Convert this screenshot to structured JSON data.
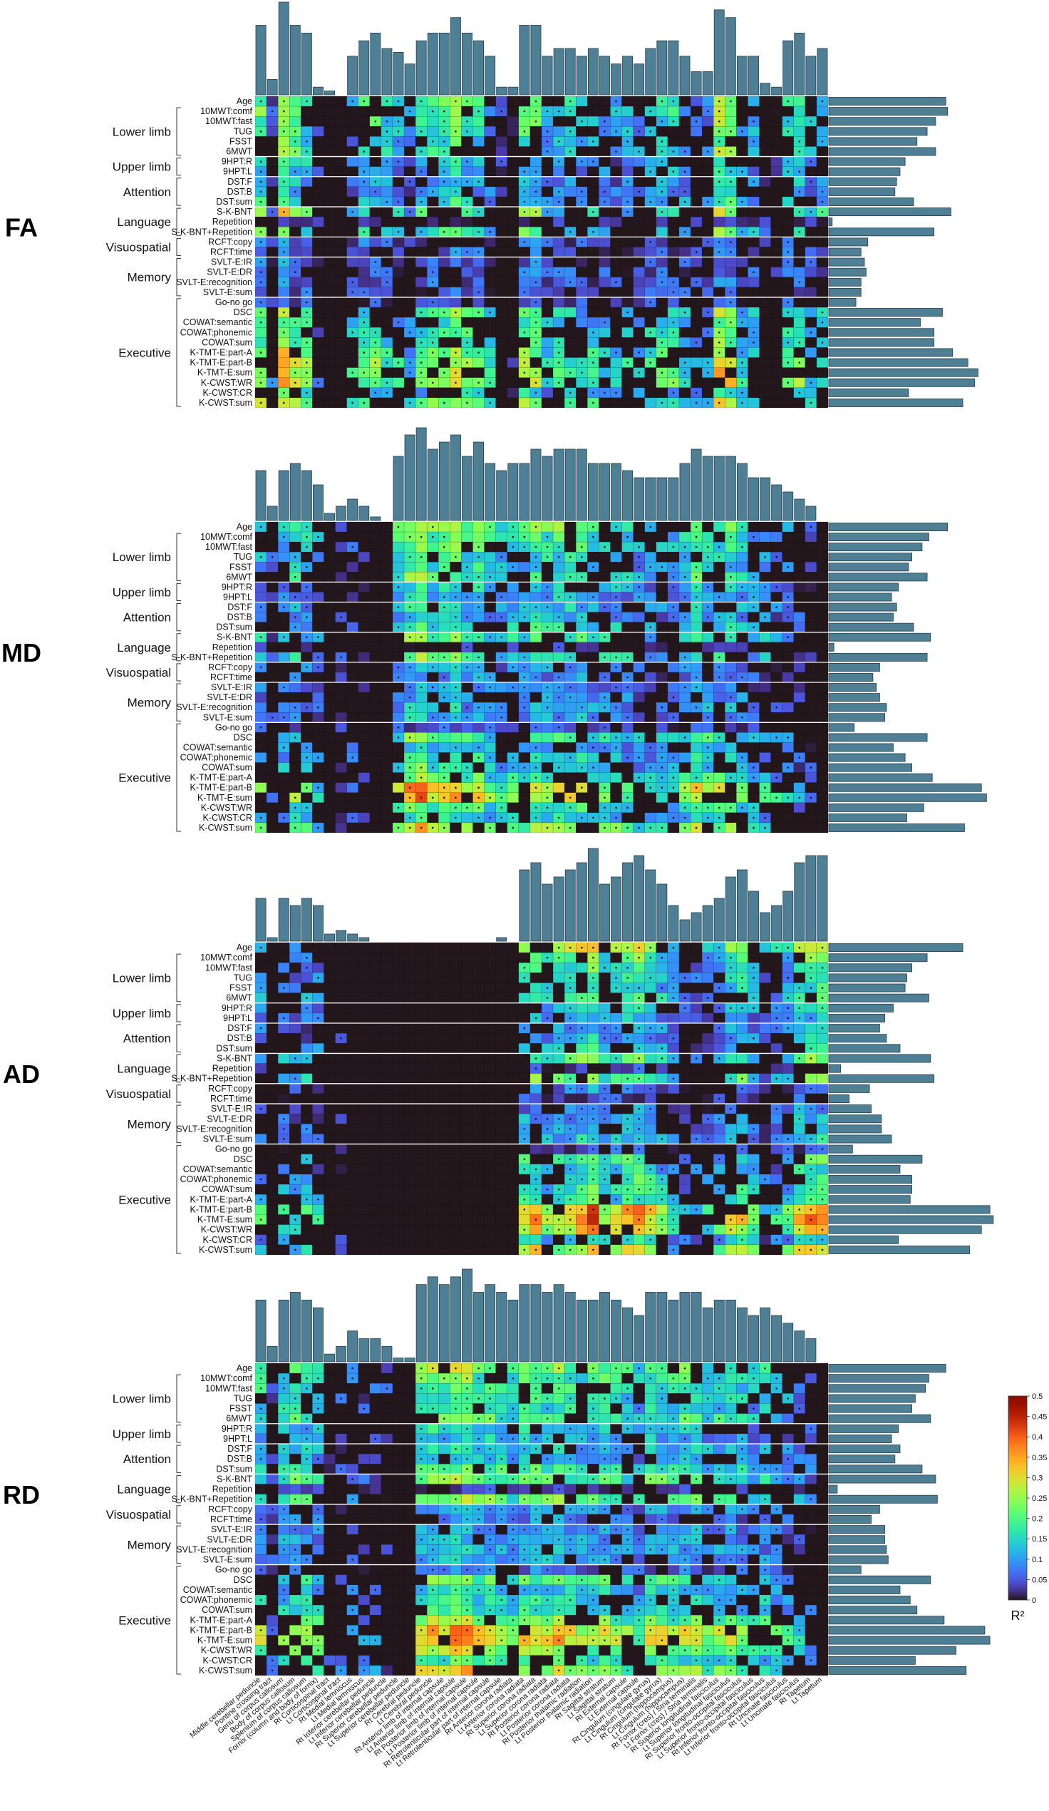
{
  "chart_data": {
    "type": "heatmap",
    "panels": [
      "FA",
      "MD",
      "AD",
      "RD"
    ],
    "rows": [
      "Age",
      "10MWT:comf",
      "10MWT:fast",
      "TUG",
      "FSST",
      "6MWT",
      "9HPT:R",
      "9HPT:L",
      "DST:F",
      "DST:B",
      "DST:sum",
      "S-K-BNT",
      "Repetition",
      "S-K-BNT+Repetition",
      "RCFT:copy",
      "RCFT:time",
      "SVLT-E:IR",
      "SVLT-E:DR",
      "SVLT-E:recognition",
      "SVLT-E:sum",
      "Go-no go",
      "DSC",
      "COWAT:semantic",
      "COWAT:phonemic",
      "COWAT:sum",
      "K-TMT-E:part-A",
      "K-TMT-E:part-B",
      "K-TMT-E:sum",
      "K-CWST:WR",
      "K-CWST:CR",
      "K-CWST:sum"
    ],
    "groups": [
      {
        "name": "Lower limb",
        "start": 1,
        "end": 5
      },
      {
        "name": "Upper limb",
        "start": 6,
        "end": 7
      },
      {
        "name": "Attention",
        "start": 8,
        "end": 10
      },
      {
        "name": "Language",
        "start": 11,
        "end": 13
      },
      {
        "name": "Visuospatial",
        "start": 14,
        "end": 15
      },
      {
        "name": "Memory",
        "start": 16,
        "end": 19
      },
      {
        "name": "Executive",
        "start": 20,
        "end": 30
      }
    ],
    "columns": [
      "Middle cerebellar peduncle",
      "Pontine crossing tract",
      "Genu of corpus callosum",
      "Body of corpus callosum",
      "Splenium of corpus callosum",
      "Fornix (column and body of fornix)",
      "Rt Corticospinal tract",
      "Lt Corticospinal tract",
      "Rt Medial lemniscus",
      "Lt Medial lemniscus",
      "Rt Inferior cerebellar peduncle",
      "Lt Inferior cerebellar peduncle",
      "Rt Superior cerebellar peduncle",
      "Lt Superior cerebellar peduncle",
      "Rt Cerebral peduncle",
      "Lt Cerebral peduncle",
      "Rt Anterior limb of internal capsule",
      "Lt Anterior limb of internal capsule",
      "Rt Posterior limb of internal capsule",
      "Lt Posterior limb of internal capsule",
      "Rt Retrolenticular part of internal capsule",
      "Lt Retrolenticular part of internal capsule",
      "Rt Anterior corona radiata",
      "Lt Anterior corona radiata",
      "Rt Superior corona radiata",
      "Lt Superior corona radiata",
      "Rt Posterior corona radiata",
      "Lt Posterior corona radiata",
      "Rt Posterior thalamic radiation",
      "Lt Posterior thalamic radiation",
      "Rt Sagittal stratum",
      "Lt Sagittal stratum",
      "Rt External capsule",
      "Lt External capsule",
      "Rt Cingulum (cingulate gyrus)",
      "Lt Cingulum (cingulate gyrus)",
      "Rt Cingulum (hippocampus)",
      "Lt Cingulum (hippocampus)",
      "Rt Fornix (cres) / Stria terminalis",
      "Lt Fornix (cres) / Stria terminalis",
      "Rt Superior longitudinal fasciculus",
      "Lt Superior longitudinal fasciculus",
      "Rt Superior fronto-occipital fasciculus",
      "Lt Superior fronto-occipital fasciculus",
      "Rt Inferior fronto-occipital fasciculus",
      "Lt Inferior fronto-occipital fasciculus",
      "Rt Uncinate fasciculus",
      "Lt Uncinate fasciculus",
      "Rt Tapetum",
      "Lt Tapetum"
    ],
    "column_profiles": {
      "FA": [
        0.09,
        0.02,
        0.12,
        0.09,
        0.08,
        0.01,
        0.005,
        0.0,
        0.05,
        0.07,
        0.08,
        0.06,
        0.055,
        0.04,
        0.07,
        0.08,
        0.08,
        0.1,
        0.08,
        0.07,
        0.05,
        0.01,
        0.01,
        0.09,
        0.09,
        0.05,
        0.06,
        0.06,
        0.05,
        0.06,
        0.05,
        0.04,
        0.05,
        0.04,
        0.06,
        0.07,
        0.07,
        0.05,
        0.03,
        0.03,
        0.11,
        0.1,
        0.05,
        0.05,
        0.015,
        0.01,
        0.07,
        0.08,
        0.05,
        0.06
      ],
      "MD": [
        0.07,
        0.02,
        0.07,
        0.08,
        0.07,
        0.05,
        0.01,
        0.02,
        0.03,
        0.02,
        0.005,
        0.0,
        0.09,
        0.12,
        0.13,
        0.1,
        0.11,
        0.12,
        0.09,
        0.11,
        0.08,
        0.07,
        0.08,
        0.08,
        0.1,
        0.09,
        0.1,
        0.1,
        0.1,
        0.08,
        0.08,
        0.08,
        0.07,
        0.06,
        0.06,
        0.06,
        0.06,
        0.08,
        0.1,
        0.09,
        0.09,
        0.09,
        0.08,
        0.06,
        0.06,
        0.05,
        0.04,
        0.03,
        0.02,
        0.0
      ],
      "AD": [
        0.06,
        0.005,
        0.06,
        0.05,
        0.06,
        0.05,
        0.01,
        0.015,
        0.01,
        0.005,
        0.0,
        0.0,
        0.0,
        0.0,
        0.0,
        0.0,
        0.0,
        0.0,
        0.0,
        0.0,
        0.0,
        0.005,
        0.0,
        0.1,
        0.11,
        0.08,
        0.09,
        0.1,
        0.11,
        0.13,
        0.08,
        0.09,
        0.11,
        0.12,
        0.1,
        0.08,
        0.05,
        0.03,
        0.04,
        0.05,
        0.06,
        0.09,
        0.1,
        0.07,
        0.04,
        0.05,
        0.07,
        0.11,
        0.12,
        0.12
      ],
      "RD": [
        0.08,
        0.02,
        0.08,
        0.09,
        0.08,
        0.07,
        0.01,
        0.02,
        0.04,
        0.03,
        0.03,
        0.02,
        0.005,
        0.005,
        0.1,
        0.11,
        0.1,
        0.11,
        0.12,
        0.09,
        0.1,
        0.09,
        0.08,
        0.1,
        0.1,
        0.09,
        0.1,
        0.09,
        0.08,
        0.08,
        0.09,
        0.08,
        0.07,
        0.06,
        0.09,
        0.09,
        0.08,
        0.09,
        0.09,
        0.07,
        0.08,
        0.08,
        0.07,
        0.06,
        0.07,
        0.06,
        0.05,
        0.04,
        0.03,
        0.0
      ]
    },
    "row_profiles": {
      "FA": [
        0.69,
        0.7,
        0.63,
        0.58,
        0.52,
        0.63,
        0.45,
        0.42,
        0.4,
        0.39,
        0.5,
        0.72,
        0.02,
        0.62,
        0.23,
        0.19,
        0.21,
        0.22,
        0.19,
        0.19,
        0.16,
        0.67,
        0.54,
        0.62,
        0.62,
        0.73,
        0.82,
        0.88,
        0.86,
        0.47,
        0.79
      ],
      "MD": [
        0.7,
        0.59,
        0.55,
        0.49,
        0.47,
        0.58,
        0.41,
        0.37,
        0.4,
        0.38,
        0.5,
        0.6,
        0.03,
        0.58,
        0.3,
        0.26,
        0.28,
        0.3,
        0.34,
        0.33,
        0.15,
        0.58,
        0.38,
        0.45,
        0.49,
        0.61,
        0.9,
        0.93,
        0.56,
        0.46,
        0.8
      ],
      "AD": [
        0.79,
        0.58,
        0.49,
        0.46,
        0.45,
        0.59,
        0.38,
        0.33,
        0.3,
        0.34,
        0.42,
        0.6,
        0.07,
        0.62,
        0.24,
        0.12,
        0.25,
        0.31,
        0.31,
        0.37,
        0.14,
        0.55,
        0.42,
        0.49,
        0.49,
        0.48,
        0.95,
        0.97,
        0.9,
        0.41,
        0.83
      ],
      "RD": [
        0.69,
        0.59,
        0.57,
        0.51,
        0.49,
        0.6,
        0.41,
        0.37,
        0.42,
        0.39,
        0.55,
        0.63,
        0.05,
        0.64,
        0.3,
        0.25,
        0.33,
        0.33,
        0.34,
        0.35,
        0.19,
        0.6,
        0.42,
        0.48,
        0.52,
        0.68,
        0.92,
        0.95,
        0.75,
        0.51,
        0.81
      ]
    },
    "colorbar": {
      "label": "R²",
      "colormap": "turbo",
      "min": 0,
      "max": 0.5,
      "ticks": [
        "0",
        "0.05",
        "0.1",
        "0.15",
        "0.2",
        "0.25",
        "0.3",
        "0.35",
        "0.4",
        "0.45",
        "0.5"
      ]
    }
  }
}
